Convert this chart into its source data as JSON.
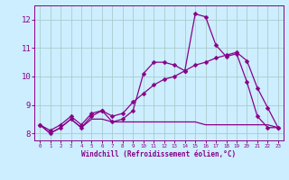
{
  "bg_color": "#cceeff",
  "grid_color": "#aacccc",
  "line_color": "#880088",
  "xlabel": "Windchill (Refroidissement éolien,°C)",
  "ylim": [
    7.75,
    12.5
  ],
  "xlim": [
    -0.5,
    23.5
  ],
  "yticks": [
    8,
    9,
    10,
    11,
    12
  ],
  "xticks": [
    0,
    1,
    2,
    3,
    4,
    5,
    6,
    7,
    8,
    9,
    10,
    11,
    12,
    13,
    14,
    15,
    16,
    17,
    18,
    19,
    20,
    21,
    22,
    23
  ],
  "series1_x": [
    0,
    1,
    2,
    3,
    4,
    5,
    6,
    7,
    8,
    9,
    10,
    11,
    12,
    13,
    14,
    15,
    16,
    17,
    18,
    19,
    20,
    21,
    22,
    23
  ],
  "series1_y": [
    8.3,
    8.0,
    8.2,
    8.5,
    8.2,
    8.6,
    8.8,
    8.4,
    8.5,
    8.8,
    10.1,
    10.5,
    10.5,
    10.4,
    10.2,
    12.2,
    12.1,
    11.1,
    10.7,
    10.8,
    9.8,
    8.6,
    8.2,
    8.2
  ],
  "series2_x": [
    0,
    1,
    2,
    3,
    4,
    5,
    6,
    7,
    8,
    9,
    10,
    11,
    12,
    13,
    14,
    15,
    16,
    17,
    18,
    19,
    20,
    21,
    22,
    23
  ],
  "series2_y": [
    8.3,
    8.0,
    8.2,
    8.5,
    8.2,
    8.5,
    8.5,
    8.4,
    8.4,
    8.4,
    8.4,
    8.4,
    8.4,
    8.4,
    8.4,
    8.4,
    8.3,
    8.3,
    8.3,
    8.3,
    8.3,
    8.3,
    8.3,
    8.2
  ],
  "series3_x": [
    0,
    1,
    2,
    3,
    4,
    5,
    6,
    7,
    8,
    9,
    10,
    11,
    12,
    13,
    14,
    15,
    16,
    17,
    18,
    19,
    20,
    21,
    22,
    23
  ],
  "series3_y": [
    8.3,
    8.1,
    8.3,
    8.6,
    8.3,
    8.7,
    8.8,
    8.6,
    8.7,
    9.1,
    9.4,
    9.7,
    9.9,
    10.0,
    10.2,
    10.4,
    10.5,
    10.65,
    10.75,
    10.85,
    10.55,
    9.6,
    8.9,
    8.2
  ]
}
